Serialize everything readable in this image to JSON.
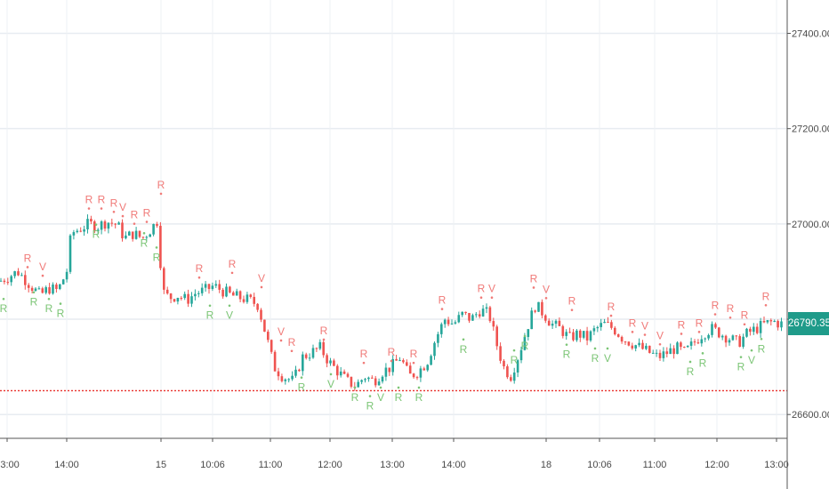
{
  "chart_data": {
    "type": "candlestick",
    "title": "",
    "xlabel": "",
    "ylabel": "",
    "ylim": [
      26550,
      27470
    ],
    "y_ticks": [
      26600,
      26800,
      27000,
      27200,
      27400
    ],
    "y_tick_labels": [
      "26600.00",
      "26800.00",
      "27000.00",
      "27200.00",
      "27400.00"
    ],
    "x_tick_labels": [
      "13:00",
      "14:00",
      "15",
      "10:06",
      "11:00",
      "12:00",
      "13:00",
      "14:00",
      "18",
      "10:06",
      "11:00",
      "12:00",
      "13:00"
    ],
    "grid": true,
    "last_price": 26790.35,
    "last_price_label": "26790.35",
    "support_level": 26650,
    "support_color": "#e8302c",
    "colors": {
      "up": "#26a69a",
      "down": "#ef5350",
      "up_signal": "#7cc576",
      "down_signal": "#f07a78",
      "badge": "#1f9b8a"
    },
    "close_path": [
      [
        0,
        26880
      ],
      [
        20,
        26900
      ],
      [
        35,
        26870
      ],
      [
        45,
        26850
      ],
      [
        55,
        26865
      ],
      [
        65,
        26860
      ],
      [
        75,
        26900
      ],
      [
        80,
        26980
      ],
      [
        90,
        26990
      ],
      [
        100,
        27000
      ],
      [
        110,
        26995
      ],
      [
        120,
        27005
      ],
      [
        132,
        26998
      ],
      [
        140,
        26970
      ],
      [
        150,
        26980
      ],
      [
        160,
        26970
      ],
      [
        170,
        26990
      ],
      [
        178,
        27010
      ],
      [
        182,
        26860
      ],
      [
        190,
        26845
      ],
      [
        200,
        26850
      ],
      [
        210,
        26840
      ],
      [
        220,
        26855
      ],
      [
        230,
        26860
      ],
      [
        240,
        26870
      ],
      [
        250,
        26860
      ],
      [
        260,
        26850
      ],
      [
        270,
        26845
      ],
      [
        280,
        26840
      ],
      [
        290,
        26830
      ],
      [
        300,
        26760
      ],
      [
        308,
        26700
      ],
      [
        318,
        26680
      ],
      [
        330,
        26670
      ],
      [
        340,
        26720
      ],
      [
        350,
        26730
      ],
      [
        360,
        26740
      ],
      [
        370,
        26710
      ],
      [
        380,
        26690
      ],
      [
        390,
        26670
      ],
      [
        400,
        26660
      ],
      [
        410,
        26680
      ],
      [
        420,
        26670
      ],
      [
        430,
        26690
      ],
      [
        440,
        26700
      ],
      [
        450,
        26720
      ],
      [
        460,
        26680
      ],
      [
        470,
        26690
      ],
      [
        480,
        26710
      ],
      [
        490,
        26760
      ],
      [
        500,
        26800
      ],
      [
        510,
        26790
      ],
      [
        520,
        26810
      ],
      [
        530,
        26800
      ],
      [
        540,
        26820
      ],
      [
        550,
        26810
      ],
      [
        558,
        26750
      ],
      [
        566,
        26700
      ],
      [
        574,
        26680
      ],
      [
        584,
        26730
      ],
      [
        594,
        26790
      ],
      [
        602,
        26830
      ],
      [
        612,
        26810
      ],
      [
        620,
        26790
      ],
      [
        630,
        26780
      ],
      [
        640,
        26760
      ],
      [
        650,
        26770
      ],
      [
        660,
        26760
      ],
      [
        670,
        26780
      ],
      [
        680,
        26790
      ],
      [
        690,
        26780
      ],
      [
        700,
        26760
      ],
      [
        710,
        26750
      ],
      [
        720,
        26740
      ],
      [
        730,
        26730
      ],
      [
        740,
        26720
      ],
      [
        750,
        26730
      ],
      [
        760,
        26740
      ],
      [
        770,
        26730
      ],
      [
        780,
        26750
      ],
      [
        790,
        26770
      ],
      [
        800,
        26780
      ],
      [
        810,
        26770
      ],
      [
        820,
        26760
      ],
      [
        830,
        26750
      ],
      [
        840,
        26770
      ],
      [
        850,
        26780
      ],
      [
        860,
        26790
      ],
      [
        870,
        26795
      ],
      [
        878,
        26790
      ]
    ],
    "signals": [
      {
        "t": "R",
        "x": 4,
        "price": 26822,
        "dir": "up"
      },
      {
        "t": "R",
        "x": 31,
        "price": 26928,
        "dir": "down"
      },
      {
        "t": "V",
        "x": 48,
        "price": 26910,
        "dir": "down"
      },
      {
        "t": "R",
        "x": 38,
        "price": 26836,
        "dir": "up"
      },
      {
        "t": "R",
        "x": 55,
        "price": 26822,
        "dir": "up"
      },
      {
        "t": "R",
        "x": 68,
        "price": 26812,
        "dir": "up"
      },
      {
        "t": "R",
        "x": 100,
        "price": 27051,
        "dir": "down"
      },
      {
        "t": "R",
        "x": 114,
        "price": 27051,
        "dir": "down"
      },
      {
        "t": "R",
        "x": 128,
        "price": 27044,
        "dir": "down"
      },
      {
        "t": "V",
        "x": 138,
        "price": 27035,
        "dir": "down"
      },
      {
        "t": "R",
        "x": 151,
        "price": 27019,
        "dir": "down"
      },
      {
        "t": "R",
        "x": 165,
        "price": 27023,
        "dir": "down"
      },
      {
        "t": "R",
        "x": 181,
        "price": 27082,
        "dir": "down"
      },
      {
        "t": "R",
        "x": 108,
        "price": 26978,
        "dir": "up"
      },
      {
        "t": "R",
        "x": 162,
        "price": 26960,
        "dir": "up"
      },
      {
        "t": "R",
        "x": 176,
        "price": 26930,
        "dir": "up"
      },
      {
        "t": "R",
        "x": 224,
        "price": 26906,
        "dir": "down"
      },
      {
        "t": "R",
        "x": 261,
        "price": 26916,
        "dir": "down"
      },
      {
        "t": "V",
        "x": 294,
        "price": 26886,
        "dir": "down"
      },
      {
        "t": "R",
        "x": 236,
        "price": 26808,
        "dir": "up"
      },
      {
        "t": "V",
        "x": 258,
        "price": 26808,
        "dir": "up"
      },
      {
        "t": "V",
        "x": 316,
        "price": 26774,
        "dir": "down"
      },
      {
        "t": "R",
        "x": 328,
        "price": 26752,
        "dir": "down"
      },
      {
        "t": "R",
        "x": 364,
        "price": 26776,
        "dir": "down"
      },
      {
        "t": "R",
        "x": 409,
        "price": 26727,
        "dir": "down"
      },
      {
        "t": "R",
        "x": 440,
        "price": 26731,
        "dir": "down"
      },
      {
        "t": "R",
        "x": 465,
        "price": 26727,
        "dir": "down"
      },
      {
        "t": "R",
        "x": 339,
        "price": 26657,
        "dir": "up"
      },
      {
        "t": "V",
        "x": 372,
        "price": 26664,
        "dir": "up"
      },
      {
        "t": "R",
        "x": 399,
        "price": 26636,
        "dir": "up"
      },
      {
        "t": "R",
        "x": 416,
        "price": 26618,
        "dir": "up"
      },
      {
        "t": "V",
        "x": 428,
        "price": 26636,
        "dir": "up"
      },
      {
        "t": "R",
        "x": 448,
        "price": 26636,
        "dir": "up"
      },
      {
        "t": "R",
        "x": 471,
        "price": 26636,
        "dir": "up"
      },
      {
        "t": "R",
        "x": 497,
        "price": 26840,
        "dir": "down"
      },
      {
        "t": "R",
        "x": 541,
        "price": 26864,
        "dir": "down"
      },
      {
        "t": "V",
        "x": 553,
        "price": 26864,
        "dir": "down"
      },
      {
        "t": "R",
        "x": 521,
        "price": 26737,
        "dir": "up"
      },
      {
        "t": "R",
        "x": 578,
        "price": 26714,
        "dir": "up"
      },
      {
        "t": "R",
        "x": 600,
        "price": 26885,
        "dir": "down"
      },
      {
        "t": "V",
        "x": 614,
        "price": 26863,
        "dir": "down"
      },
      {
        "t": "R",
        "x": 643,
        "price": 26838,
        "dir": "down"
      },
      {
        "t": "R",
        "x": 687,
        "price": 26826,
        "dir": "down"
      },
      {
        "t": "R",
        "x": 711,
        "price": 26792,
        "dir": "down"
      },
      {
        "t": "V",
        "x": 725,
        "price": 26786,
        "dir": "down"
      },
      {
        "t": "V",
        "x": 742,
        "price": 26766,
        "dir": "down"
      },
      {
        "t": "R",
        "x": 766,
        "price": 26788,
        "dir": "down"
      },
      {
        "t": "R",
        "x": 786,
        "price": 26792,
        "dir": "down"
      },
      {
        "t": "R",
        "x": 804,
        "price": 26829,
        "dir": "down"
      },
      {
        "t": "R",
        "x": 821,
        "price": 26822,
        "dir": "down"
      },
      {
        "t": "R",
        "x": 837,
        "price": 26808,
        "dir": "down"
      },
      {
        "t": "R",
        "x": 861,
        "price": 26848,
        "dir": "down"
      },
      {
        "t": "R",
        "x": 590,
        "price": 26744,
        "dir": "up"
      },
      {
        "t": "R",
        "x": 637,
        "price": 26726,
        "dir": "up"
      },
      {
        "t": "R",
        "x": 669,
        "price": 26718,
        "dir": "up"
      },
      {
        "t": "V",
        "x": 683,
        "price": 26718,
        "dir": "up"
      },
      {
        "t": "R",
        "x": 776,
        "price": 26690,
        "dir": "up"
      },
      {
        "t": "R",
        "x": 790,
        "price": 26708,
        "dir": "up"
      },
      {
        "t": "R",
        "x": 833,
        "price": 26700,
        "dir": "up"
      },
      {
        "t": "V",
        "x": 845,
        "price": 26714,
        "dir": "up"
      },
      {
        "t": "R",
        "x": 856,
        "price": 26738,
        "dir": "up"
      }
    ]
  }
}
